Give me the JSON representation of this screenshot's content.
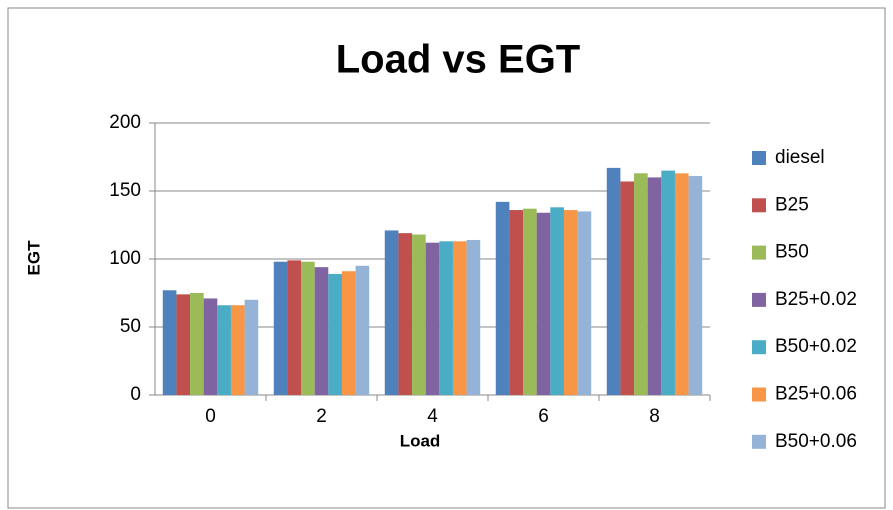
{
  "chart_data": {
    "type": "bar",
    "title": "Load vs EGT",
    "x_label": "Load",
    "y_label": "EGT",
    "categories": [
      "0",
      "2",
      "4",
      "6",
      "8"
    ],
    "series": [
      {
        "name": "diesel",
        "color": "#4f81bd",
        "values": [
          77,
          98,
          121,
          142,
          167
        ]
      },
      {
        "name": "B25",
        "color": "#c0504d",
        "values": [
          74,
          99,
          119,
          136,
          157
        ]
      },
      {
        "name": "B50",
        "color": "#9bbb59",
        "values": [
          75,
          98,
          118,
          137,
          163
        ]
      },
      {
        "name": "B25+0.02",
        "color": "#8064a2",
        "values": [
          71,
          94,
          112,
          134,
          160
        ]
      },
      {
        "name": "B50+0.02",
        "color": "#4bacc6",
        "values": [
          66,
          89,
          113,
          138,
          165
        ]
      },
      {
        "name": "B25+0.06",
        "color": "#f79646",
        "values": [
          66,
          91,
          113,
          136,
          163
        ]
      },
      {
        "name": "B50+0.06",
        "color": "#95b3d7",
        "values": [
          70,
          95,
          114,
          135,
          161
        ]
      }
    ],
    "ylim": [
      0,
      200
    ],
    "yticks": [
      0,
      50,
      100,
      150,
      200
    ],
    "grid": true,
    "legend": "right"
  }
}
